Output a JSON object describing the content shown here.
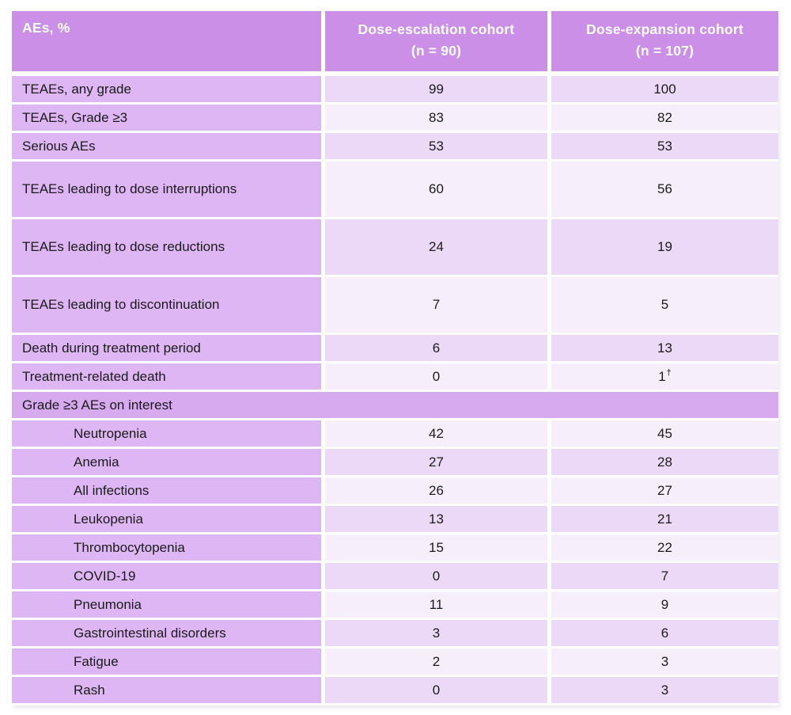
{
  "table": {
    "header": {
      "col1": "AEs, %",
      "col2_line1": "Dose-escalation cohort",
      "col2_line2": "(n = 90)",
      "col3_line1": "Dose-expansion cohort",
      "col3_line2": "(n = 107)"
    },
    "rows": [
      {
        "label": "TEAEs, any grade",
        "escalation": "99",
        "expansion": "100"
      },
      {
        "label": "TEAEs, Grade ≥3",
        "escalation": "83",
        "expansion": "82"
      },
      {
        "label": "Serious AEs",
        "escalation": "53",
        "expansion": "53"
      },
      {
        "label": "TEAEs leading to dose interruptions",
        "escalation": "60",
        "expansion": "56",
        "tall": true
      },
      {
        "label": "TEAEs leading to dose reductions",
        "escalation": "24",
        "expansion": "19",
        "tall": true
      },
      {
        "label": "TEAEs leading to discontinuation",
        "escalation": "7",
        "expansion": "5",
        "tall": true
      },
      {
        "label": "Death during treatment period",
        "escalation": "6",
        "expansion": "13"
      },
      {
        "label": "Treatment-related death",
        "escalation": "0",
        "expansion": "1",
        "expansion_sup": "†"
      },
      {
        "label": "Grade ≥3 AEs on interest",
        "section": true
      },
      {
        "label": "Neutropenia",
        "escalation": "42",
        "expansion": "45",
        "indent": true
      },
      {
        "label": "Anemia",
        "escalation": "27",
        "expansion": "28",
        "indent": true
      },
      {
        "label": "All infections",
        "escalation": "26",
        "expansion": "27",
        "indent": true
      },
      {
        "label": "Leukopenia",
        "escalation": "13",
        "expansion": "21",
        "indent": true
      },
      {
        "label": "Thrombocytopenia",
        "escalation": "15",
        "expansion": "22",
        "indent": true
      },
      {
        "label": "COVID-19",
        "escalation": "0",
        "expansion": "7",
        "indent": true
      },
      {
        "label": "Pneumonia",
        "escalation": "11",
        "expansion": "9",
        "indent": true
      },
      {
        "label": "Gastrointestinal disorders",
        "escalation": "3",
        "expansion": "6",
        "indent": true
      },
      {
        "label": "Fatigue",
        "escalation": "2",
        "expansion": "3",
        "indent": true
      },
      {
        "label": "Rash",
        "escalation": "0",
        "expansion": "3",
        "indent": true
      }
    ],
    "colors": {
      "header_bg": "#cc8fe7",
      "header_text": "#ffffff",
      "label_bg": "#ddb6f3",
      "section_bg": "#d7a9ef",
      "data_dark": "#ecd9f7",
      "data_light": "#f7eefc",
      "body_text": "#1b1b1b"
    }
  },
  "chart_data": {
    "type": "table",
    "title": "",
    "columns": [
      "AEs, %",
      "Dose-escalation cohort (n = 90)",
      "Dose-expansion cohort (n = 107)"
    ],
    "rows": [
      [
        "TEAEs, any grade",
        99,
        100
      ],
      [
        "TEAEs, Grade ≥3",
        83,
        82
      ],
      [
        "Serious AEs",
        53,
        53
      ],
      [
        "TEAEs leading to dose interruptions",
        60,
        56
      ],
      [
        "TEAEs leading to dose reductions",
        24,
        19
      ],
      [
        "TEAEs leading to discontinuation",
        7,
        5
      ],
      [
        "Death during treatment period",
        6,
        13
      ],
      [
        "Treatment-related death",
        0,
        "1†"
      ],
      [
        "Grade ≥3 AEs on interest",
        null,
        null
      ],
      [
        "Neutropenia",
        42,
        45
      ],
      [
        "Anemia",
        27,
        28
      ],
      [
        "All infections",
        26,
        27
      ],
      [
        "Leukopenia",
        13,
        21
      ],
      [
        "Thrombocytopenia",
        15,
        22
      ],
      [
        "COVID-19",
        0,
        7
      ],
      [
        "Pneumonia",
        11,
        9
      ],
      [
        "Gastrointestinal disorders",
        3,
        6
      ],
      [
        "Fatigue",
        2,
        3
      ],
      [
        "Rash",
        0,
        3
      ]
    ]
  }
}
